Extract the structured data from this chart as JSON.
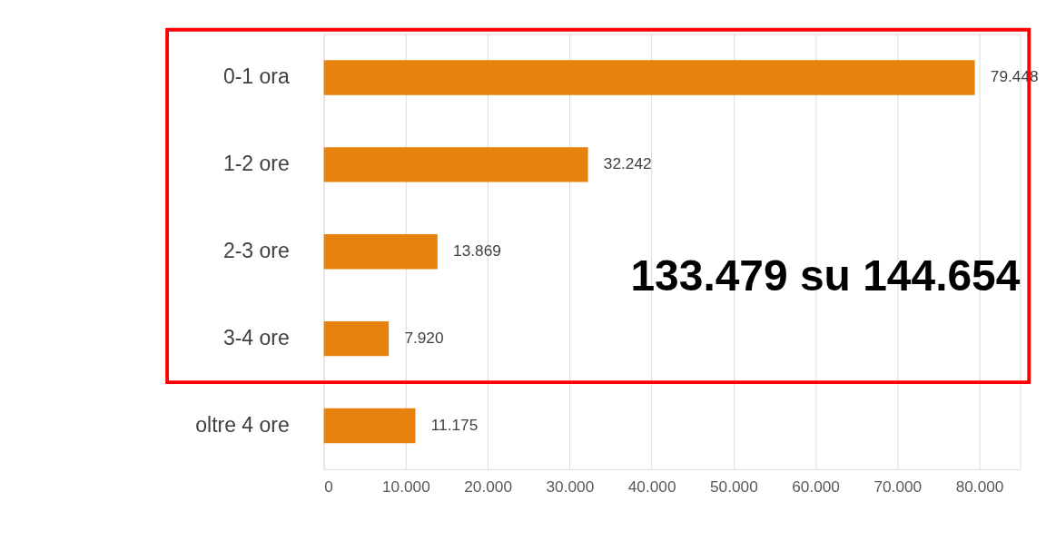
{
  "chart_data": {
    "type": "bar",
    "orientation": "horizontal",
    "categories": [
      "0-1 ora",
      "1-2 ore",
      "2-3 ore",
      "3-4 ore",
      "oltre 4 ore"
    ],
    "values": [
      79448,
      32242,
      13869,
      7920,
      11175
    ],
    "value_labels": [
      "79.448",
      "32.242",
      "13.869",
      "7.920",
      "11.175"
    ],
    "color": "#e8820f",
    "xlim": [
      0,
      85000
    ],
    "xticks": [
      0,
      {
        "value": 10000,
        "label": "10.000"
      },
      {
        "value": 20000,
        "label": "20.000"
      },
      {
        "value": 30000,
        "label": "30.000"
      },
      {
        "value": 40000,
        "label": "40.000"
      },
      {
        "value": 50000,
        "label": "50.000"
      },
      {
        "value": 60000,
        "label": "60.000"
      },
      {
        "value": 70000,
        "label": "70.000"
      },
      {
        "value": 80000,
        "label": "80.000"
      }
    ],
    "grid": "x",
    "annotations": [
      "133.479 su 144.654"
    ]
  }
}
